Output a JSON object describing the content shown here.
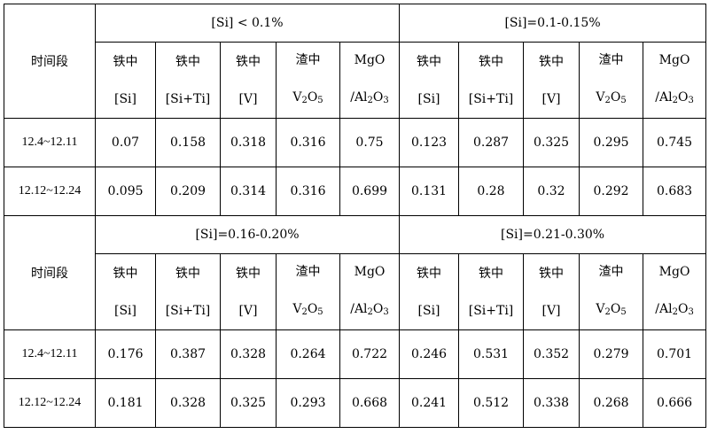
{
  "period_header": "时间段",
  "col_headers": [
    {
      "line1": "铁中",
      "line2": "[Si]"
    },
    {
      "line1": "铁中",
      "line2": "[Si+Ti]"
    },
    {
      "line1": "铁中",
      "line2": "[V]"
    },
    {
      "line1": "渣中",
      "line2_pre": "V",
      "line2_sub1": "2",
      "line2_mid": "O",
      "line2_sub2": "5"
    },
    {
      "line1": "MgO",
      "line2_pre": "/Al",
      "line2_sub1": "2",
      "line2_mid": "O",
      "line2_sub2": "3"
    }
  ],
  "blocks": [
    {
      "groups": [
        "[Si] < 0.1%",
        "[Si]=0.1-0.15%"
      ],
      "rows": [
        {
          "period": "12.4~12.11",
          "values": [
            "0.07",
            "0.158",
            "0.318",
            "0.316",
            "0.75",
            "0.123",
            "0.287",
            "0.325",
            "0.295",
            "0.745"
          ]
        },
        {
          "period": "12.12~12.24",
          "values": [
            "0.095",
            "0.209",
            "0.314",
            "0.316",
            "0.699",
            "0.131",
            "0.28",
            "0.32",
            "0.292",
            "0.683"
          ]
        }
      ]
    },
    {
      "groups": [
        "[Si]=0.16-0.20%",
        "[Si]=0.21-0.30%"
      ],
      "rows": [
        {
          "period": "12.4~12.11",
          "values": [
            "0.176",
            "0.387",
            "0.328",
            "0.264",
            "0.722",
            "0.246",
            "0.531",
            "0.352",
            "0.279",
            "0.701"
          ]
        },
        {
          "period": "12.12~12.24",
          "values": [
            "0.181",
            "0.328",
            "0.325",
            "0.293",
            "0.668",
            "0.241",
            "0.512",
            "0.338",
            "0.268",
            "0.666"
          ]
        }
      ]
    }
  ]
}
